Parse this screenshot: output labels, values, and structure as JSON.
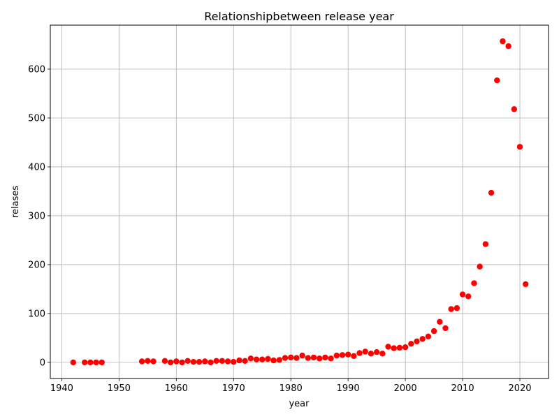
{
  "chart_data": {
    "type": "scatter",
    "title": "Relationshipbetween release year",
    "xlabel": "year",
    "ylabel": "relases",
    "xlim": [
      1938,
      2025
    ],
    "ylim": [
      -33,
      690
    ],
    "xticks": [
      1940,
      1950,
      1960,
      1970,
      1980,
      1990,
      2000,
      2010,
      2020
    ],
    "yticks": [
      0,
      100,
      200,
      300,
      400,
      500,
      600
    ],
    "grid": true,
    "marker_color": "#ff0000",
    "x": [
      1942,
      1944,
      1945,
      1946,
      1947,
      1954,
      1955,
      1956,
      1958,
      1959,
      1960,
      1961,
      1962,
      1963,
      1964,
      1965,
      1966,
      1967,
      1968,
      1969,
      1970,
      1971,
      1972,
      1973,
      1974,
      1975,
      1976,
      1977,
      1978,
      1979,
      1980,
      1981,
      1982,
      1983,
      1984,
      1985,
      1986,
      1987,
      1988,
      1989,
      1990,
      1991,
      1992,
      1993,
      1994,
      1995,
      1996,
      1997,
      1998,
      1999,
      2000,
      2001,
      2002,
      2003,
      2004,
      2005,
      2006,
      2007,
      2008,
      2009,
      2010,
      2011,
      2012,
      2013,
      2014,
      2015,
      2016,
      2017,
      2018,
      2019,
      2020,
      2021
    ],
    "y": [
      0,
      0,
      0,
      0,
      0,
      2,
      3,
      2,
      3,
      0,
      2,
      0,
      3,
      1,
      1,
      2,
      0,
      3,
      3,
      2,
      1,
      4,
      3,
      8,
      6,
      6,
      7,
      4,
      5,
      9,
      10,
      9,
      14,
      9,
      10,
      8,
      10,
      8,
      14,
      15,
      16,
      13,
      19,
      22,
      18,
      21,
      18,
      32,
      29,
      30,
      31,
      38,
      43,
      48,
      53,
      64,
      83,
      70,
      109,
      111,
      139,
      135,
      162,
      196,
      242,
      347,
      577,
      657,
      647,
      518,
      441,
      160
    ]
  }
}
